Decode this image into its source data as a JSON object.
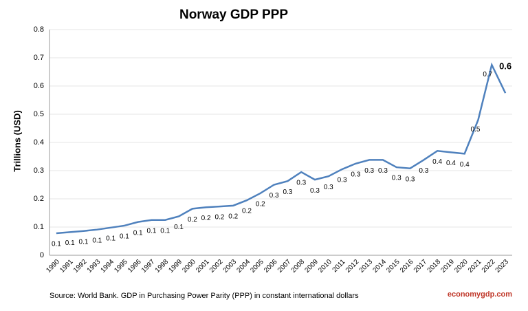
{
  "chart_data": {
    "type": "line",
    "title": "Norway GDP PPP",
    "y_label": "Trillions (USD)",
    "categories": [
      "1990",
      "1991",
      "1992",
      "1993",
      "1994",
      "1995",
      "1996",
      "1997",
      "1998",
      "1999",
      "2000",
      "2001",
      "2002",
      "2003",
      "2004",
      "2005",
      "2006",
      "2007",
      "2008",
      "2009",
      "2010",
      "2011",
      "2012",
      "2013",
      "2014",
      "2015",
      "2016",
      "2017",
      "2018",
      "2019",
      "2020",
      "2021",
      "2022",
      "2023"
    ],
    "series": [
      {
        "name": "Norway GDP PPP",
        "color": "#4f81bd",
        "values": [
          0.078,
          0.082,
          0.086,
          0.091,
          0.098,
          0.105,
          0.118,
          0.125,
          0.125,
          0.138,
          0.165,
          0.17,
          0.173,
          0.176,
          0.195,
          0.22,
          0.25,
          0.263,
          0.295,
          0.268,
          0.28,
          0.305,
          0.325,
          0.338,
          0.338,
          0.312,
          0.308,
          0.338,
          0.37,
          0.365,
          0.36,
          0.48,
          0.675,
          0.575
        ],
        "value_labels": [
          "0.1",
          "0.1",
          "0.1",
          "0.1",
          "0.1",
          "0.1",
          "0.1",
          "0.1",
          "0.1",
          "0.1",
          "0.2",
          "0.2",
          "0.2",
          "0.2",
          "0.2",
          "0.2",
          "0.3",
          "0.3",
          "0.3",
          "0.3",
          "0.3",
          "0.3",
          "0.3",
          "0.3",
          "0.3",
          "0.3",
          "0.3",
          "0.3",
          "0.4",
          "0.4",
          "0.4",
          "0.5",
          "0.7",
          "0.6"
        ]
      }
    ],
    "ylim": [
      0,
      0.8
    ],
    "yticks": [
      0,
      0.1,
      0.2,
      0.3,
      0.4,
      0.5,
      0.6,
      0.7,
      0.8
    ],
    "grid": true,
    "source": "Source:  World Bank.  GDP  in  Purchasing Power Parity (PPP)  in constant international dollars",
    "brand": "economygdp.com"
  }
}
